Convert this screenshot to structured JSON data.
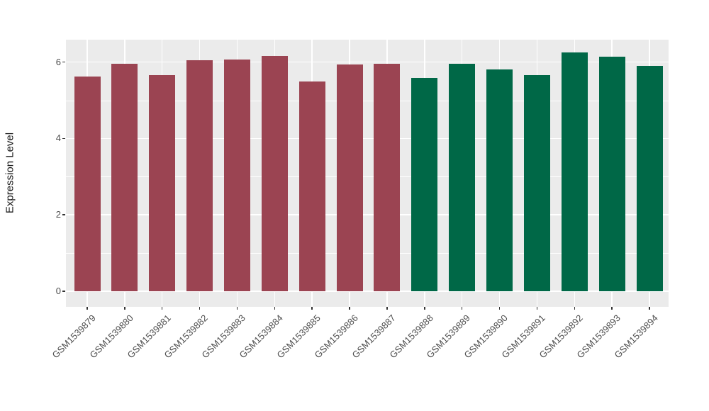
{
  "chart_data": {
    "type": "bar",
    "title": "",
    "xlabel": "",
    "ylabel": "Expression Level",
    "categories": [
      "GSM1539879",
      "GSM1539880",
      "GSM1539881",
      "GSM1539882",
      "GSM1539883",
      "GSM1539884",
      "GSM1539885",
      "GSM1539886",
      "GSM1539887",
      "GSM1539888",
      "GSM1539889",
      "GSM1539890",
      "GSM1539891",
      "GSM1539892",
      "GSM1539893",
      "GSM1539894"
    ],
    "values": [
      5.62,
      5.95,
      5.67,
      6.05,
      6.07,
      6.17,
      5.5,
      5.93,
      5.96,
      5.59,
      5.95,
      5.81,
      5.67,
      6.25,
      6.15,
      5.9
    ],
    "group_split_index": 9,
    "group_colors": [
      "#9B4452",
      "#006847"
    ],
    "yticks": [
      0,
      2,
      4,
      6
    ],
    "yticks_minor": [
      1,
      3,
      5
    ],
    "ylim": [
      0,
      6.6
    ],
    "grid": "horizontal major+minor and vertical major, white on gray panel",
    "legend": "none",
    "panel_background": "#EBEBEB",
    "grid_color": "#FFFFFF"
  }
}
